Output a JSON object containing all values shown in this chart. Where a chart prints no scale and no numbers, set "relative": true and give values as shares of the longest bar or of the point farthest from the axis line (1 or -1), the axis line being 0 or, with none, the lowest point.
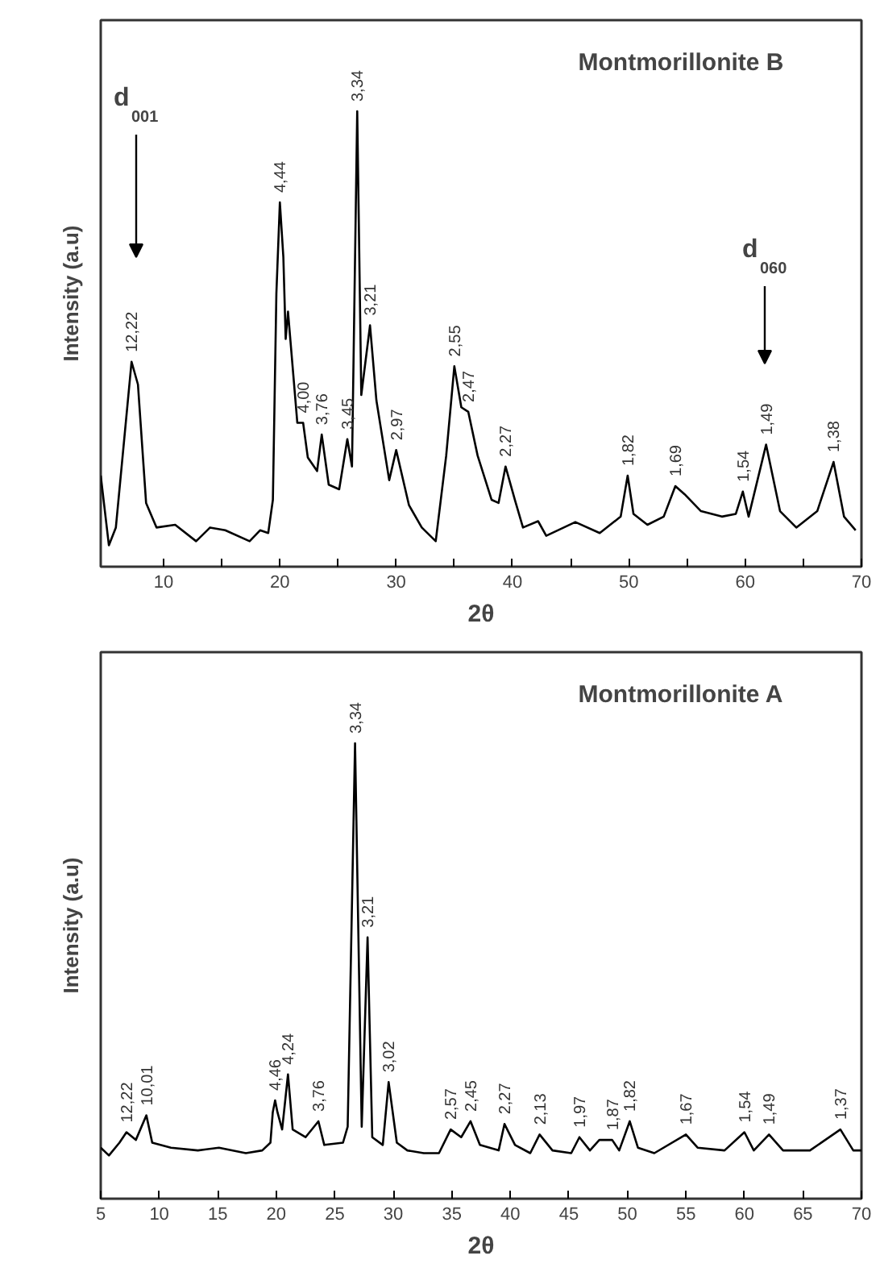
{
  "chart_data": [
    {
      "type": "line",
      "title": "Montmorillonite B",
      "xlabel": "2θ",
      "ylabel": "Intensity (a.u)",
      "relative": true,
      "xlim": [
        4.6,
        70
      ],
      "xticks": [
        10,
        {
          "value": 15,
          "label": null
        },
        20,
        {
          "value": 25,
          "label": null
        },
        30,
        {
          "value": 35,
          "label": null
        },
        40,
        {
          "value": 45,
          "label": null
        },
        50,
        {
          "value": 55,
          "label": null
        },
        60,
        {
          "value": 65,
          "label": null
        },
        70
      ],
      "grid": false,
      "marker": "none",
      "line_style": "solid",
      "series": [
        {
          "color": "#000000",
          "x": [
            4.6,
            5.3,
            5.9,
            7.25,
            7.8,
            8.5,
            9.4,
            11.0,
            12.8,
            14.0,
            15.3,
            17.4,
            18.3,
            19.0,
            19.4,
            19.7,
            20.0,
            20.3,
            20.5,
            20.7,
            21.5,
            22.0,
            22.4,
            23.2,
            23.6,
            24.2,
            25.1,
            25.8,
            26.2,
            26.65,
            27.0,
            27.75,
            28.3,
            29.4,
            30.0,
            31.1,
            32.2,
            33.4,
            34.3,
            35.0,
            35.6,
            36.2,
            37.0,
            38.2,
            38.8,
            39.4,
            40.2,
            40.9,
            42.2,
            42.9,
            45.4,
            47.5,
            49.3,
            49.9,
            50.4,
            51.6,
            53.0,
            54.0,
            54.8,
            56.2,
            58.0,
            59.2,
            59.8,
            60.3,
            61.8,
            63.0,
            64.4,
            66.2,
            67.6,
            68.5,
            69.5
          ],
          "values": [
            0.2,
            0.047,
            0.086,
            0.45,
            0.4,
            0.14,
            0.086,
            0.092,
            0.056,
            0.086,
            0.08,
            0.056,
            0.08,
            0.074,
            0.147,
            0.6,
            0.8,
            0.68,
            0.5,
            0.56,
            0.316,
            0.316,
            0.24,
            0.21,
            0.29,
            0.18,
            0.17,
            0.28,
            0.22,
            1.0,
            0.377,
            0.53,
            0.365,
            0.19,
            0.256,
            0.135,
            0.086,
            0.056,
            0.244,
            0.44,
            0.35,
            0.34,
            0.244,
            0.147,
            0.14,
            0.22,
            0.147,
            0.086,
            0.1,
            0.068,
            0.098,
            0.074,
            0.11,
            0.2,
            0.116,
            0.092,
            0.11,
            0.177,
            0.159,
            0.122,
            0.11,
            0.116,
            0.165,
            0.11,
            0.268,
            0.122,
            0.086,
            0.122,
            0.23,
            0.11,
            0.08
          ]
        }
      ],
      "annotations": [
        {
          "text": "12,22",
          "x": 7.25,
          "y": 0.45
        },
        {
          "text": "4,44",
          "x": 20.0,
          "y": 0.8
        },
        {
          "text": "4,00",
          "x": 22.0,
          "y": 0.316
        },
        {
          "text": "3,76",
          "x": 23.6,
          "y": 0.29
        },
        {
          "text": "3,45",
          "x": 25.8,
          "y": 0.28
        },
        {
          "text": "3,34",
          "x": 26.65,
          "y": 1.0
        },
        {
          "text": "3,21",
          "x": 27.75,
          "y": 0.53
        },
        {
          "text": "2,97",
          "x": 30.0,
          "y": 0.256
        },
        {
          "text": "2,55",
          "x": 35.0,
          "y": 0.44
        },
        {
          "text": "2,47",
          "x": 36.2,
          "y": 0.34
        },
        {
          "text": "2,27",
          "x": 39.4,
          "y": 0.22
        },
        {
          "text": "1,82",
          "x": 49.9,
          "y": 0.2
        },
        {
          "text": "1,69",
          "x": 54.0,
          "y": 0.177
        },
        {
          "text": "1,54",
          "x": 59.8,
          "y": 0.165
        },
        {
          "text": "1,49",
          "x": 61.8,
          "y": 0.268
        },
        {
          "text": "1,38",
          "x": 67.6,
          "y": 0.23
        },
        "d$_{001}$",
        "d$_{060}$"
      ]
    },
    {
      "type": "line",
      "title": "Montmorillonite A",
      "xlabel": "2θ",
      "ylabel": "Intensity (a.u)",
      "relative": true,
      "xlim": [
        5,
        70
      ],
      "xticks": [
        5,
        10,
        15,
        20,
        25,
        30,
        35,
        40,
        45,
        50,
        55,
        60,
        65,
        70
      ],
      "grid": false,
      "marker": "none",
      "line_style": "solid",
      "series": [
        {
          "color": "#000000",
          "x": [
            5.0,
            5.7,
            6.6,
            7.2,
            8.0,
            8.9,
            9.4,
            11.0,
            13.3,
            15.1,
            17.4,
            18.8,
            19.5,
            19.7,
            19.9,
            20.1,
            20.5,
            21.0,
            21.4,
            22.5,
            23.6,
            24.1,
            25.7,
            26.1,
            26.73,
            27.3,
            27.8,
            28.2,
            29.1,
            29.6,
            30.3,
            31.2,
            32.6,
            33.9,
            34.9,
            35.8,
            36.6,
            37.4,
            39.0,
            39.5,
            40.4,
            41.7,
            42.5,
            43.6,
            45.2,
            45.9,
            46.8,
            47.6,
            48.7,
            49.3,
            50.2,
            50.9,
            52.3,
            55.0,
            56.0,
            58.3,
            60.0,
            60.8,
            62.1,
            63.3,
            65.6,
            68.2,
            69.3,
            70.0
          ],
          "values": [
            0.112,
            0.095,
            0.123,
            0.146,
            0.129,
            0.183,
            0.123,
            0.112,
            0.106,
            0.112,
            0.1,
            0.106,
            0.123,
            0.19,
            0.216,
            0.19,
            0.152,
            0.273,
            0.152,
            0.135,
            0.17,
            0.118,
            0.123,
            0.158,
            1.0,
            0.158,
            0.574,
            0.135,
            0.118,
            0.256,
            0.123,
            0.106,
            0.1,
            0.1,
            0.152,
            0.135,
            0.17,
            0.118,
            0.106,
            0.164,
            0.118,
            0.1,
            0.141,
            0.106,
            0.1,
            0.135,
            0.106,
            0.129,
            0.129,
            0.106,
            0.17,
            0.112,
            0.1,
            0.141,
            0.112,
            0.106,
            0.146,
            0.106,
            0.141,
            0.106,
            0.106,
            0.152,
            0.106,
            0.106
          ]
        }
      ],
      "annotations": [
        {
          "text": "12,22",
          "x": 7.2,
          "y": 0.146
        },
        {
          "text": "10,01",
          "x": 8.9,
          "y": 0.183
        },
        {
          "text": "4,46",
          "x": 19.9,
          "y": 0.216
        },
        {
          "text": "4,24",
          "x": 21.0,
          "y": 0.273
        },
        {
          "text": "3,76",
          "x": 23.6,
          "y": 0.17
        },
        {
          "text": "3,34",
          "x": 26.73,
          "y": 1.0
        },
        {
          "text": "3,21",
          "x": 27.8,
          "y": 0.574
        },
        {
          "text": "3,02",
          "x": 29.6,
          "y": 0.256
        },
        {
          "text": "2,57",
          "x": 34.9,
          "y": 0.152
        },
        {
          "text": "2,45",
          "x": 36.6,
          "y": 0.17
        },
        {
          "text": "2,27",
          "x": 39.5,
          "y": 0.164
        },
        {
          "text": "2,13",
          "x": 42.5,
          "y": 0.141
        },
        {
          "text": "1,97",
          "x": 45.9,
          "y": 0.135
        },
        {
          "text": "1,87",
          "x": 48.7,
          "y": 0.129
        },
        {
          "text": "1,82",
          "x": 50.2,
          "y": 0.17
        },
        {
          "text": "1,67",
          "x": 55.0,
          "y": 0.141
        },
        {
          "text": "1,54",
          "x": 60.0,
          "y": 0.146
        },
        {
          "text": "1,49",
          "x": 62.1,
          "y": 0.141
        },
        {
          "text": "1,37",
          "x": 68.2,
          "y": 0.152
        }
      ]
    }
  ]
}
